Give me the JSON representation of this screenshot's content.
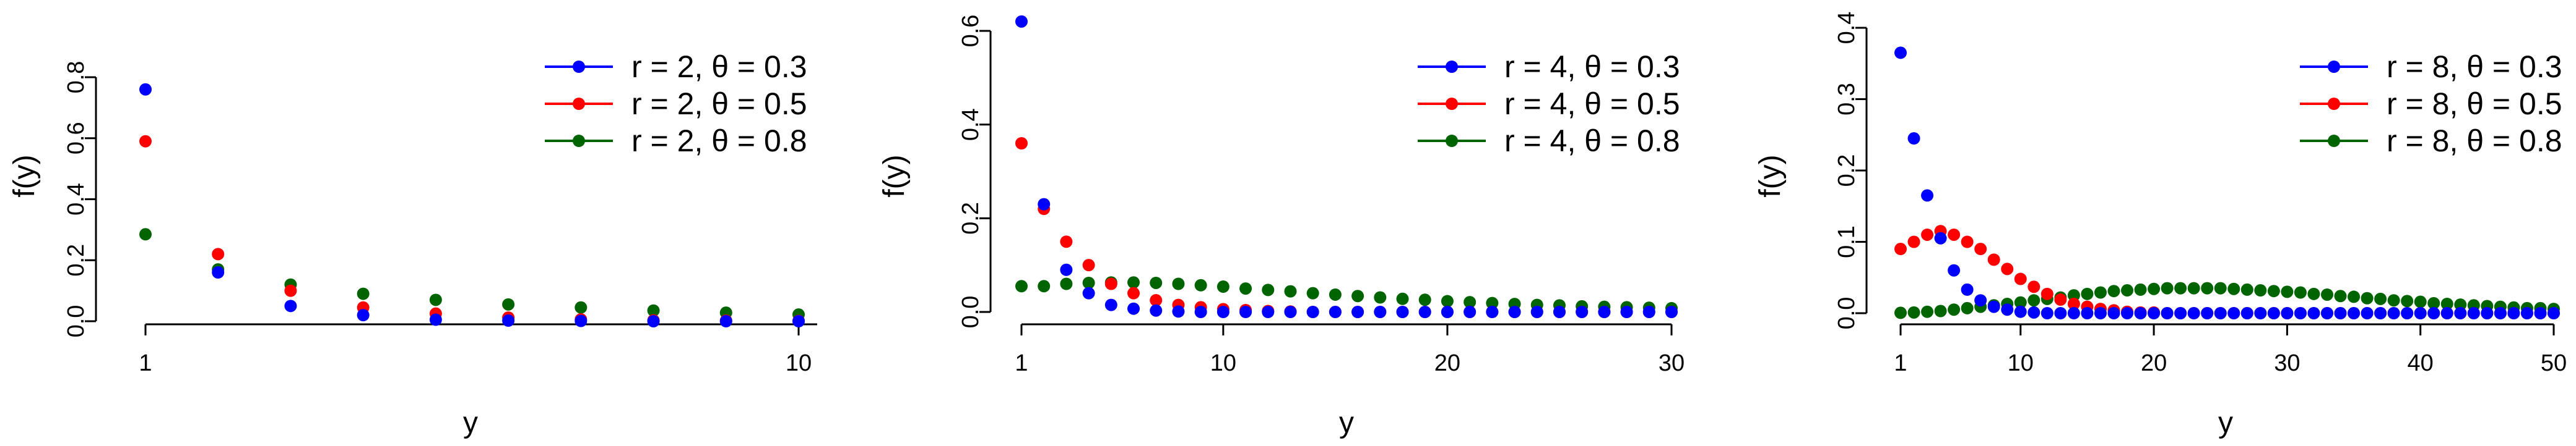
{
  "chart_data": [
    {
      "type": "scatter",
      "title": "",
      "xlabel": "y",
      "ylabel": "f(y)",
      "xlim": [
        1,
        10
      ],
      "ylim": [
        0,
        0.8
      ],
      "xticks": [
        "1",
        "10"
      ],
      "yticks": [
        "0.0",
        "0.2",
        "0.4",
        "0.6",
        "0.8"
      ],
      "legend_position": "top-right",
      "grid": false,
      "x": [
        1,
        2,
        3,
        4,
        5,
        6,
        7,
        8,
        9,
        10
      ],
      "series": [
        {
          "name": "r = 2, θ = 0.3",
          "color": "#0000ff",
          "values": [
            0.76,
            0.16,
            0.05,
            0.02,
            0.005,
            0.002,
            0.001,
            0.0,
            0.0,
            0.0
          ]
        },
        {
          "name": "r = 2, θ = 0.5",
          "color": "#ff0000",
          "values": [
            0.59,
            0.22,
            0.1,
            0.045,
            0.025,
            0.012,
            0.006,
            0.003,
            0.002,
            0.001
          ]
        },
        {
          "name": "r = 2, θ = 0.8",
          "color": "#006400",
          "values": [
            0.285,
            0.17,
            0.12,
            0.09,
            0.07,
            0.055,
            0.045,
            0.035,
            0.028,
            0.022
          ]
        }
      ]
    },
    {
      "type": "scatter",
      "title": "",
      "xlabel": "y",
      "ylabel": "f(y)",
      "xlim": [
        1,
        30
      ],
      "ylim": [
        0,
        0.6
      ],
      "xticks": [
        "1",
        "10",
        "20",
        "30"
      ],
      "yticks": [
        "0.0",
        "0.2",
        "0.4",
        "0.6"
      ],
      "legend_position": "top-right",
      "grid": false,
      "x": [
        1,
        2,
        3,
        4,
        5,
        6,
        7,
        8,
        9,
        10,
        11,
        12,
        13,
        14,
        15,
        16,
        17,
        18,
        19,
        20,
        21,
        22,
        23,
        24,
        25,
        26,
        27,
        28,
        29,
        30
      ],
      "series": [
        {
          "name": "r = 4, θ = 0.3",
          "color": "#0000ff",
          "values": [
            0.62,
            0.23,
            0.09,
            0.04,
            0.015,
            0.007,
            0.003,
            0.001,
            0,
            0,
            0,
            0,
            0,
            0,
            0,
            0,
            0,
            0,
            0,
            0,
            0,
            0,
            0,
            0,
            0,
            0,
            0,
            0,
            0,
            0
          ]
        },
        {
          "name": "r = 4, θ = 0.5",
          "color": "#ff0000",
          "values": [
            0.36,
            0.22,
            0.15,
            0.1,
            0.06,
            0.04,
            0.025,
            0.015,
            0.01,
            0.006,
            0.004,
            0.002,
            0.001,
            0,
            0,
            0,
            0,
            0,
            0,
            0,
            0,
            0,
            0,
            0,
            0,
            0,
            0,
            0,
            0,
            0
          ]
        },
        {
          "name": "r = 4, θ = 0.8",
          "color": "#006400",
          "values": [
            0.055,
            0.055,
            0.06,
            0.062,
            0.063,
            0.063,
            0.062,
            0.06,
            0.057,
            0.054,
            0.05,
            0.047,
            0.044,
            0.04,
            0.037,
            0.034,
            0.031,
            0.028,
            0.026,
            0.023,
            0.021,
            0.019,
            0.017,
            0.015,
            0.014,
            0.012,
            0.011,
            0.01,
            0.009,
            0.008
          ]
        }
      ]
    },
    {
      "type": "scatter",
      "title": "",
      "xlabel": "y",
      "ylabel": "f(y)",
      "xlim": [
        1,
        50
      ],
      "ylim": [
        0,
        0.4
      ],
      "xticks": [
        "1",
        "10",
        "20",
        "30",
        "40",
        "50"
      ],
      "yticks": [
        "0.0",
        "0.1",
        "0.2",
        "0.3",
        "0.4"
      ],
      "legend_position": "top-right",
      "grid": false,
      "x": [
        1,
        2,
        3,
        4,
        5,
        6,
        7,
        8,
        9,
        10,
        11,
        12,
        13,
        14,
        15,
        16,
        17,
        18,
        19,
        20,
        21,
        22,
        23,
        24,
        25,
        26,
        27,
        28,
        29,
        30,
        31,
        32,
        33,
        34,
        35,
        36,
        37,
        38,
        39,
        40,
        41,
        42,
        43,
        44,
        45,
        46,
        47,
        48,
        49,
        50
      ],
      "series": [
        {
          "name": "r = 8, θ = 0.3",
          "color": "#0000ff",
          "values": [
            0.365,
            0.245,
            0.165,
            0.105,
            0.06,
            0.033,
            0.018,
            0.009,
            0.005,
            0.002,
            0.001,
            0,
            0,
            0,
            0,
            0,
            0,
            0,
            0,
            0,
            0,
            0,
            0,
            0,
            0,
            0,
            0,
            0,
            0,
            0,
            0,
            0,
            0,
            0,
            0,
            0,
            0,
            0,
            0,
            0,
            0,
            0,
            0,
            0,
            0,
            0,
            0,
            0,
            0,
            0
          ]
        },
        {
          "name": "r = 8, θ = 0.5",
          "color": "#ff0000",
          "values": [
            0.09,
            0.1,
            0.11,
            0.115,
            0.11,
            0.1,
            0.09,
            0.075,
            0.062,
            0.048,
            0.037,
            0.027,
            0.019,
            0.013,
            0.009,
            0.006,
            0.004,
            0.002,
            0.001,
            0.001,
            0,
            0,
            0,
            0,
            0,
            0,
            0,
            0,
            0,
            0,
            0,
            0,
            0,
            0,
            0,
            0,
            0,
            0,
            0,
            0,
            0,
            0,
            0,
            0,
            0,
            0,
            0,
            0,
            0,
            0
          ]
        },
        {
          "name": "r = 8, θ = 0.8",
          "color": "#006400",
          "values": [
            0.0005,
            0.001,
            0.002,
            0.003,
            0.005,
            0.007,
            0.009,
            0.011,
            0.013,
            0.015,
            0.018,
            0.02,
            0.022,
            0.025,
            0.027,
            0.029,
            0.031,
            0.032,
            0.033,
            0.034,
            0.035,
            0.035,
            0.035,
            0.035,
            0.035,
            0.034,
            0.033,
            0.032,
            0.031,
            0.03,
            0.029,
            0.027,
            0.026,
            0.024,
            0.023,
            0.021,
            0.02,
            0.018,
            0.017,
            0.016,
            0.014,
            0.013,
            0.012,
            0.011,
            0.01,
            0.009,
            0.008,
            0.007,
            0.007,
            0.006
          ]
        }
      ]
    }
  ]
}
